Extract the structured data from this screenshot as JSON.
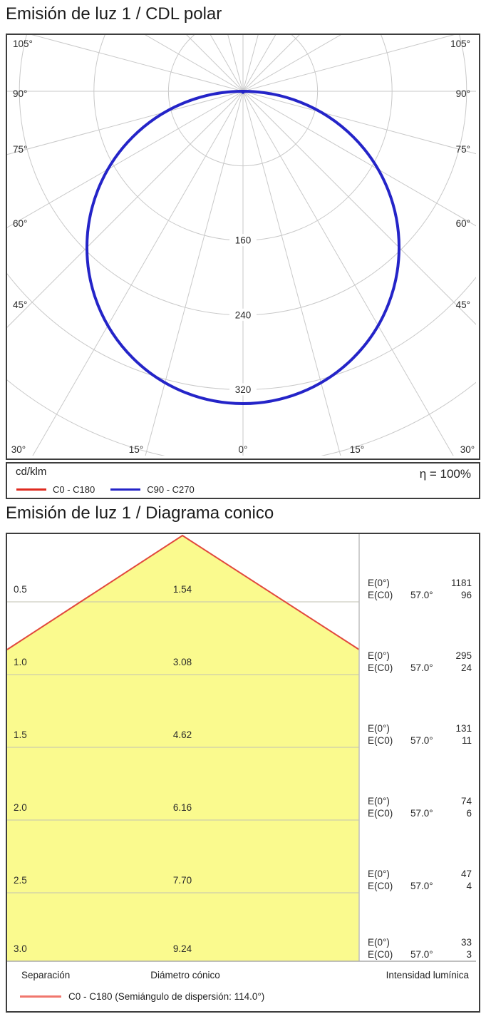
{
  "polar_section": {
    "title": "Emisión de luz 1 / CDL polar",
    "unit_label": "cd/klm",
    "efficiency_label": "η = 100%",
    "legend": [
      {
        "label": "C0 - C180",
        "color": "#df2b20"
      },
      {
        "label": "C90 - C270",
        "color": "#2424c8"
      }
    ]
  },
  "cone_section": {
    "title": "Emisión de luz 1 / Diagrama conico",
    "footer": {
      "col_separation": "Separación",
      "col_diameter": "Diámetro cónico",
      "col_intensity": "Intensidad lumínica",
      "legend_label": "C0 - C180 (Semiángulo de dispersión: 114.0°)",
      "legend_color": "#f0776d"
    }
  },
  "chart_data": [
    {
      "type": "polar",
      "title": "Emisión de luz 1 / CDL polar",
      "units": "cd/klm",
      "efficiency": "η = 100%",
      "angle_step_deg": 15,
      "angle_labels_side": [
        "105°",
        "90°",
        "75°",
        "60°",
        "45°"
      ],
      "angle_labels_bottom": [
        "30°",
        "15°",
        "0°",
        "15°",
        "30°"
      ],
      "rings": [
        80,
        160,
        240,
        320,
        400
      ],
      "ring_labels": [
        160,
        240,
        320
      ],
      "grid_color": "#c9c9c9",
      "series": [
        {
          "name": "C0 - C180",
          "color": "#df2b20",
          "shape": "circle-through-origin",
          "I_max_cd_per_klm": 335,
          "width": 2.5
        },
        {
          "name": "C90 - C270",
          "color": "#2424c8",
          "shape": "circle-through-origin",
          "I_max_cd_per_klm": 335,
          "width": 4
        }
      ],
      "note": "I(θ) ≈ I_max·cos(θ), symmetric about 0°"
    },
    {
      "type": "cone-diagram",
      "title": "Emisión de luz 1 / Diagrama conico",
      "beam_half_angle": "57.0°",
      "dispersion_semiangle": "114.0°",
      "labels": {
        "E0": "E(0°)",
        "EC0": "E(C0)"
      },
      "fill_color": "#fafa8e",
      "edge_color": "#e1483d",
      "rows": [
        {
          "separation_m": "0.5",
          "cone_diameter_m": "1.54",
          "E0_lx": "1181",
          "EC0_angle": "57.0°",
          "EC0_lx": "96"
        },
        {
          "separation_m": "1.0",
          "cone_diameter_m": "3.08",
          "E0_lx": "295",
          "EC0_angle": "57.0°",
          "EC0_lx": "24"
        },
        {
          "separation_m": "1.5",
          "cone_diameter_m": "4.62",
          "E0_lx": "131",
          "EC0_angle": "57.0°",
          "EC0_lx": "11"
        },
        {
          "separation_m": "2.0",
          "cone_diameter_m": "6.16",
          "E0_lx": "74",
          "EC0_angle": "57.0°",
          "EC0_lx": "6"
        },
        {
          "separation_m": "2.5",
          "cone_diameter_m": "7.70",
          "E0_lx": "47",
          "EC0_angle": "57.0°",
          "EC0_lx": "4"
        },
        {
          "separation_m": "3.0",
          "cone_diameter_m": "9.24",
          "E0_lx": "33",
          "EC0_angle": "57.0°",
          "EC0_lx": "3"
        }
      ]
    }
  ]
}
